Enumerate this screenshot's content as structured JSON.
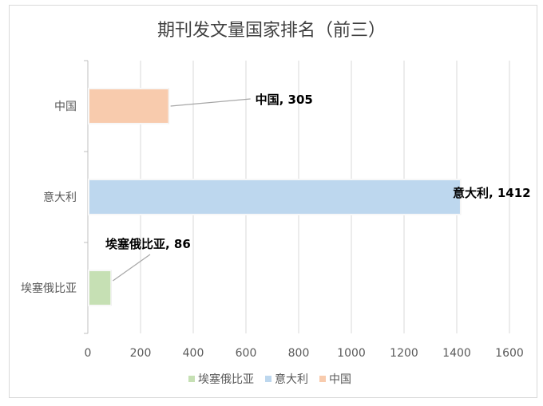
{
  "chart_data": {
    "type": "bar",
    "orientation": "horizontal",
    "title": "期刊发文量国家排名（前三）",
    "categories": [
      "埃塞俄比亚",
      "意大利",
      "中国"
    ],
    "series": [
      {
        "name": "埃塞俄比亚",
        "values": [
          86,
          null,
          null
        ],
        "color": "#c6e0b4"
      },
      {
        "name": "意大利",
        "values": [
          null,
          1412,
          null
        ],
        "color": "#bdd7ee"
      },
      {
        "name": "中国",
        "values": [
          null,
          null,
          305
        ],
        "color": "#f8cbad"
      }
    ],
    "data_labels": [
      {
        "category": "埃塞俄比亚",
        "text": "埃塞俄比亚, 86"
      },
      {
        "category": "意大利",
        "text": "意大利, 1412"
      },
      {
        "category": "中国",
        "text": "中国, 305"
      }
    ],
    "xlim": [
      0,
      1600
    ],
    "xticks": [
      "0",
      "200",
      "400",
      "600",
      "800",
      "1000",
      "1200",
      "1400",
      "1600"
    ],
    "grid": true,
    "legend_position": "bottom",
    "legend": [
      "埃塞俄比亚",
      "意大利",
      "中国"
    ]
  }
}
